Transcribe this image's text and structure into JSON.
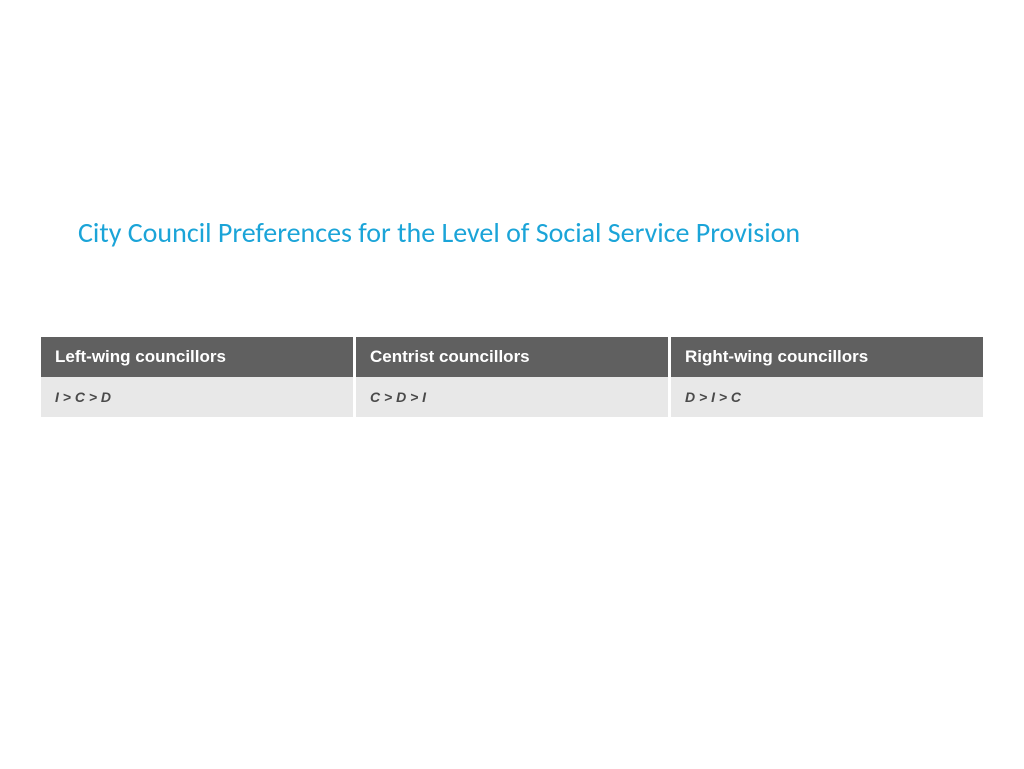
{
  "title": "City Council Preferences for the Level of Social Service Provision",
  "table": {
    "headers": [
      "Left-wing councillors",
      "Centrist councillors",
      "Right-wing councillors"
    ],
    "row": [
      "I > C > D",
      "C > D > I",
      "D > I > C"
    ]
  },
  "colors": {
    "title": "#1ba4d8",
    "header_bg": "#606060",
    "header_text": "#ffffff",
    "cell_bg": "#e8e8e8",
    "cell_text": "#4a4a4a",
    "page_bg": "#ffffff"
  }
}
